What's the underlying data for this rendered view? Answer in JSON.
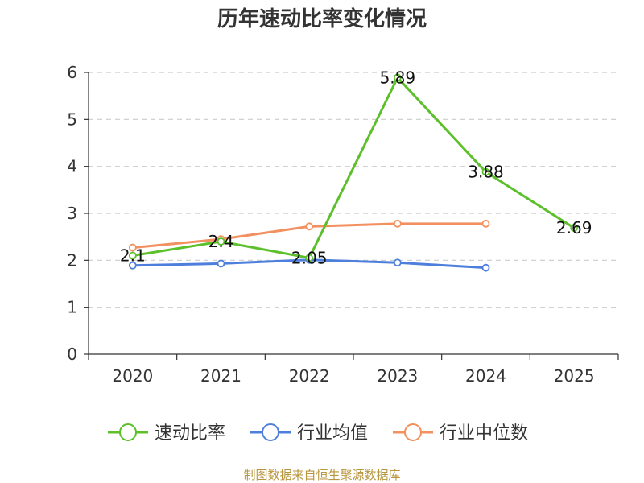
{
  "chart_data": {
    "type": "line",
    "title": "历年速动比率变化情况",
    "categories": [
      "2020",
      "2021",
      "2022",
      "2023",
      "2024",
      "2025"
    ],
    "yticks": [
      "0",
      "1",
      "2",
      "3",
      "4",
      "5",
      "6"
    ],
    "ylim": [
      0,
      6
    ],
    "grid": true,
    "legend_position": "bottom",
    "series": [
      {
        "name": "速动比率",
        "color": "#5cc02a",
        "values": [
          2.1,
          2.4,
          2.05,
          5.89,
          3.88,
          2.69
        ],
        "labels": [
          "2.1",
          "2.4",
          "2.05",
          "5.89",
          "3.88",
          "2.69"
        ]
      },
      {
        "name": "行业均值",
        "color": "#4f7fdc",
        "values": [
          1.89,
          1.93,
          2.01,
          1.95,
          1.84,
          null
        ]
      },
      {
        "name": "行业中位数",
        "color": "#f39060",
        "values": [
          2.27,
          2.45,
          2.72,
          2.78,
          2.78,
          null
        ]
      }
    ],
    "source": "制图数据来自恒生聚源数据库"
  }
}
